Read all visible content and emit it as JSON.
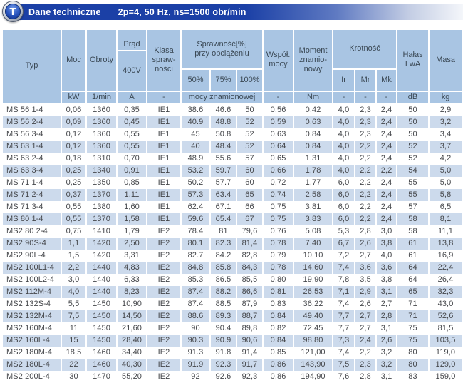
{
  "title_bar": {
    "badge_letter": "T",
    "title": "Dane techniczne",
    "subtitle": "2p=4, 50 Hz, ns=1500 obr/min"
  },
  "table": {
    "header": {
      "typ": "Typ",
      "moc": "Moc",
      "obroty": "Obroty",
      "prad_top": "Prąd",
      "prad_bottom": "400V",
      "klasa": "Klasa\nspraw-\nności",
      "sprawnosc": "Sprawność[%]\nprzy obciążeniu",
      "eff_sub": [
        "50%",
        "75%",
        "100%"
      ],
      "wspol": "Współ.\nmocy",
      "moment": "Moment\nznamio-\nnowy",
      "krotnosc": "Krotność",
      "krot_sub": [
        "Ir",
        "Mr",
        "Mk"
      ],
      "halas": "Hałas\nLwA",
      "masa": "Masa",
      "units": [
        "kW",
        "1/min",
        "A",
        "-",
        "mocy znamionowej",
        "-",
        "Nm",
        "-",
        "-",
        "-",
        "dB",
        "kg"
      ]
    },
    "rows": [
      [
        "MS 56 1-4",
        "0,06",
        "1360",
        "0,35",
        "IE1",
        "38.6",
        "46.6",
        "50",
        "0,56",
        "0,42",
        "4,0",
        "2,3",
        "2,4",
        "50",
        "2,9"
      ],
      [
        "MS 56 2-4",
        "0,09",
        "1360",
        "0,45",
        "IE1",
        "40.9",
        "48.8",
        "52",
        "0,59",
        "0,63",
        "4,0",
        "2,3",
        "2,4",
        "50",
        "3,2"
      ],
      [
        "MS 56 3-4",
        "0,12",
        "1360",
        "0,55",
        "IE1",
        "45",
        "50.8",
        "52",
        "0,63",
        "0,84",
        "4,0",
        "2,3",
        "2,4",
        "50",
        "3,4"
      ],
      [
        "MS 63 1-4",
        "0,12",
        "1360",
        "0,55",
        "IE1",
        "40",
        "48.4",
        "52",
        "0,64",
        "0,84",
        "4,0",
        "2,2",
        "2,4",
        "52",
        "3,7"
      ],
      [
        "MS 63 2-4",
        "0,18",
        "1310",
        "0,70",
        "IE1",
        "48.9",
        "55.6",
        "57",
        "0,65",
        "1,31",
        "4,0",
        "2,2",
        "2,4",
        "52",
        "4,2"
      ],
      [
        "MS 63 3-4",
        "0,25",
        "1340",
        "0,91",
        "IE1",
        "53.2",
        "59.7",
        "60",
        "0,66",
        "1,78",
        "4,0",
        "2,2",
        "2,2",
        "54",
        "5,0"
      ],
      [
        "MS 71 1-4",
        "0,25",
        "1350",
        "0,85",
        "IE1",
        "50.2",
        "57.7",
        "60",
        "0,72",
        "1,77",
        "6,0",
        "2,2",
        "2,4",
        "55",
        "5,0"
      ],
      [
        "MS 71 2-4",
        "0,37",
        "1370",
        "1,11",
        "IE1",
        "57.3",
        "63.4",
        "65",
        "0,74",
        "2,58",
        "6,0",
        "2,2",
        "2,4",
        "55",
        "5,8"
      ],
      [
        "MS 71 3-4",
        "0,55",
        "1380",
        "1,60",
        "IE1",
        "62.4",
        "67.1",
        "66",
        "0,75",
        "3,81",
        "6,0",
        "2,2",
        "2,4",
        "57",
        "6,5"
      ],
      [
        "MS 80 1-4",
        "0,55",
        "1370",
        "1,58",
        "IE1",
        "59.6",
        "65.4",
        "67",
        "0,75",
        "3,83",
        "6,0",
        "2,2",
        "2,4",
        "58",
        "8,1"
      ],
      [
        "MS2 80 2-4",
        "0,75",
        "1410",
        "1,79",
        "IE2",
        "78.4",
        "81",
        "79,6",
        "0,76",
        "5,08",
        "5,3",
        "2,8",
        "3,0",
        "58",
        "11,1"
      ],
      [
        "MS2 90S-4",
        "1,1",
        "1420",
        "2,50",
        "IE2",
        "80.1",
        "82.3",
        "81,4",
        "0,78",
        "7,40",
        "6,7",
        "2,6",
        "3,8",
        "61",
        "13,8"
      ],
      [
        "MS2 90L-4",
        "1,5",
        "1420",
        "3,31",
        "IE2",
        "82.7",
        "84.2",
        "82,8",
        "0,79",
        "10,10",
        "7,2",
        "2,7",
        "4,0",
        "61",
        "16,9"
      ],
      [
        "MS2 100L1-4",
        "2,2",
        "1440",
        "4,83",
        "IE2",
        "84.8",
        "85.8",
        "84,3",
        "0,78",
        "14,60",
        "7,4",
        "3,6",
        "3,6",
        "64",
        "22,4"
      ],
      [
        "MS2 100L2-4",
        "3,0",
        "1440",
        "6,33",
        "IE2",
        "85.3",
        "86.5",
        "85,5",
        "0,80",
        "19,90",
        "7,8",
        "3,5",
        "3,8",
        "64",
        "26,4"
      ],
      [
        "MS2 112M-4",
        "4,0",
        "1440",
        "8,23",
        "IE2",
        "87.4",
        "88.2",
        "86,6",
        "0,81",
        "26,53",
        "7,1",
        "2,9",
        "3,1",
        "65",
        "32,3"
      ],
      [
        "MS2 132S-4",
        "5,5",
        "1450",
        "10,90",
        "IE2",
        "87.4",
        "88.5",
        "87,9",
        "0,83",
        "36,22",
        "7,4",
        "2,6",
        "2,7",
        "71",
        "43,0"
      ],
      [
        "MS2 132M-4",
        "7,5",
        "1450",
        "14,50",
        "IE2",
        "88.6",
        "89.3",
        "88,7",
        "0,84",
        "49,40",
        "7,7",
        "2,7",
        "2,8",
        "71",
        "52,6"
      ],
      [
        "MS2 160M-4",
        "11",
        "1450",
        "21,60",
        "IE2",
        "90",
        "90.4",
        "89,8",
        "0,82",
        "72,45",
        "7,7",
        "2,7",
        "3,1",
        "75",
        "81,5"
      ],
      [
        "MS2 160L-4",
        "15",
        "1450",
        "28,40",
        "IE2",
        "90.3",
        "90.9",
        "90,6",
        "0,84",
        "98,80",
        "7,3",
        "2,4",
        "2,6",
        "75",
        "103,5"
      ],
      [
        "MS2 180M-4",
        "18,5",
        "1460",
        "34,40",
        "IE2",
        "91.3",
        "91.8",
        "91,4",
        "0,85",
        "121,00",
        "7,4",
        "2,2",
        "3,2",
        "80",
        "119,0"
      ],
      [
        "MS2 180L-4",
        "22",
        "1460",
        "40,30",
        "IE2",
        "91.9",
        "92.3",
        "91,7",
        "0,86",
        "143,90",
        "7,5",
        "2,3",
        "3,2",
        "80",
        "129,0"
      ],
      [
        "MS2 200L-4",
        "30",
        "1470",
        "55,20",
        "IE2",
        "92",
        "92.6",
        "92,3",
        "0,86",
        "194,90",
        "7,6",
        "2,8",
        "3,1",
        "83",
        "159,0"
      ]
    ]
  }
}
